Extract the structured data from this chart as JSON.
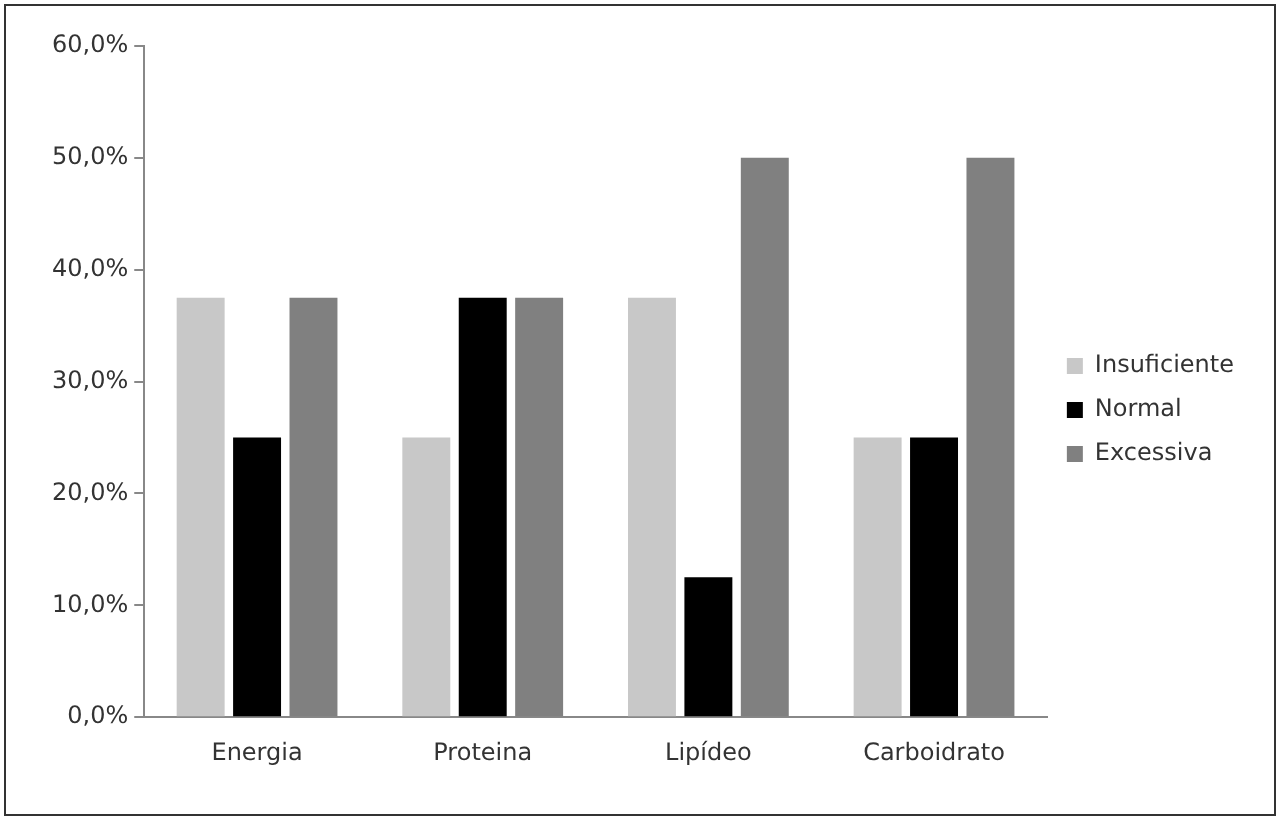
{
  "chart_data": {
    "type": "bar",
    "categories": [
      "Energia",
      "Proteina",
      "Lipídeo",
      "Carboidrato"
    ],
    "series": [
      {
        "name": "Insuficiente",
        "color": "#c8c8c8",
        "values": [
          37.5,
          25,
          37.5,
          25
        ]
      },
      {
        "name": "Normal",
        "color": "#000000",
        "values": [
          25,
          37.5,
          12.5,
          25
        ]
      },
      {
        "name": "Excessiva",
        "color": "#808080",
        "values": [
          37.5,
          37.5,
          50,
          50
        ]
      }
    ],
    "ylim": [
      0,
      60
    ],
    "yticks": [
      {
        "value": 0,
        "label": "0,0%"
      },
      {
        "value": 10,
        "label": "10,0%"
      },
      {
        "value": 20,
        "label": "20,0%"
      },
      {
        "value": 30,
        "label": "30,0%"
      },
      {
        "value": 40,
        "label": "40,0%"
      },
      {
        "value": 50,
        "label": "50,0%"
      },
      {
        "value": 60,
        "label": "60,0%"
      }
    ],
    "grid": false,
    "legend": "right"
  }
}
